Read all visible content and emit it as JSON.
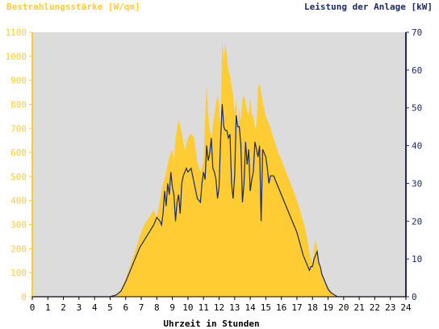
{
  "chart_data": {
    "type": "area",
    "title_left": "Bestrahlungsstärke [W/qm]",
    "title_right": "Leistung der Anlage [kW]",
    "xlabel": "Uhrzeit in Stunden",
    "x_ticks": [
      "0",
      "1",
      "2",
      "3",
      "4",
      "5",
      "6",
      "7",
      "8",
      "9",
      "10",
      "11",
      "12",
      "13",
      "14",
      "15",
      "16",
      "17",
      "18",
      "19",
      "20",
      "21",
      "22",
      "23",
      "24"
    ],
    "y_left_ticks": [
      "0",
      "100",
      "200",
      "300",
      "400",
      "500",
      "600",
      "700",
      "800",
      "900",
      "1000",
      "1100"
    ],
    "y_right_ticks": [
      "0",
      "10",
      "20",
      "30",
      "40",
      "50",
      "60",
      "70"
    ],
    "xlim": [
      0,
      24
    ],
    "ylim_left": [
      0,
      1100
    ],
    "ylim_right": [
      0,
      70
    ],
    "grid": false,
    "colors": {
      "background": "#dcdcdc",
      "area": "#ffcc33",
      "line": "#1a2a66",
      "left_axis": "#ffcc33",
      "right_axis": "#1a2a66",
      "text": "#000000"
    },
    "series": [
      {
        "name": "Bestrahlungsstärke [W/qm]",
        "axis": "left",
        "style": "area",
        "x": [
          0,
          5.0,
          5.3,
          5.6,
          5.9,
          6.2,
          6.5,
          6.8,
          7.0,
          7.2,
          7.4,
          7.6,
          7.8,
          8.0,
          8.2,
          8.4,
          8.6,
          8.8,
          8.9,
          9.0,
          9.1,
          9.2,
          9.3,
          9.4,
          9.6,
          9.8,
          10.0,
          10.2,
          10.4,
          10.6,
          10.8,
          11.0,
          11.1,
          11.2,
          11.35,
          11.5,
          11.7,
          11.9,
          12.0,
          12.1,
          12.2,
          12.3,
          12.4,
          12.5,
          12.6,
          12.7,
          12.8,
          12.9,
          13.0,
          13.1,
          13.2,
          13.3,
          13.4,
          13.5,
          13.6,
          13.7,
          13.8,
          13.9,
          14.0,
          14.1,
          14.2,
          14.3,
          14.4,
          14.5,
          14.6,
          14.7,
          14.8,
          14.9,
          15.0,
          15.2,
          15.4,
          15.6,
          15.8,
          16.0,
          16.3,
          16.6,
          16.9,
          17.2,
          17.5,
          17.7,
          17.85,
          18.0,
          18.1,
          18.2,
          18.3,
          18.4,
          18.5,
          18.7,
          18.9,
          19.1,
          19.3,
          19.5,
          19.7,
          19.9,
          20.1,
          20.3,
          24
        ],
        "values": [
          0,
          0,
          5,
          20,
          60,
          110,
          170,
          230,
          270,
          300,
          320,
          340,
          360,
          330,
          400,
          470,
          520,
          580,
          600,
          610,
          570,
          660,
          700,
          740,
          680,
          610,
          660,
          680,
          660,
          560,
          520,
          560,
          740,
          880,
          720,
          660,
          760,
          840,
          800,
          690,
          1080,
          980,
          1060,
          1000,
          940,
          920,
          880,
          840,
          760,
          820,
          700,
          780,
          730,
          820,
          840,
          810,
          770,
          760,
          830,
          760,
          750,
          700,
          710,
          870,
          890,
          850,
          810,
          780,
          750,
          720,
          680,
          640,
          600,
          570,
          520,
          470,
          420,
          360,
          290,
          230,
          170,
          140,
          210,
          240,
          200,
          160,
          120,
          80,
          50,
          30,
          15,
          6,
          2,
          0,
          0,
          0,
          0
        ]
      },
      {
        "name": "Leistung der Anlage [kW]",
        "axis": "right",
        "style": "line",
        "x": [
          0,
          5.0,
          5.4,
          5.7,
          6.0,
          6.3,
          6.6,
          6.9,
          7.2,
          7.5,
          7.8,
          8.0,
          8.2,
          8.3,
          8.4,
          8.5,
          8.6,
          8.7,
          8.8,
          8.9,
          9.0,
          9.1,
          9.2,
          9.3,
          9.4,
          9.5,
          9.6,
          9.7,
          9.8,
          9.9,
          10.0,
          10.2,
          10.4,
          10.6,
          10.8,
          10.9,
          11.0,
          11.1,
          11.2,
          11.3,
          11.4,
          11.5,
          11.6,
          11.7,
          11.8,
          11.9,
          12.0,
          12.1,
          12.2,
          12.3,
          12.4,
          12.5,
          12.6,
          12.7,
          12.8,
          12.9,
          13.0,
          13.1,
          13.2,
          13.3,
          13.4,
          13.5,
          13.6,
          13.7,
          13.8,
          13.9,
          14.0,
          14.1,
          14.2,
          14.3,
          14.4,
          14.5,
          14.6,
          14.7,
          14.8,
          14.9,
          15.0,
          15.1,
          15.2,
          15.3,
          15.4,
          15.5,
          15.6,
          15.8,
          16.0,
          16.2,
          16.4,
          16.6,
          16.8,
          17.0,
          17.2,
          17.4,
          17.6,
          17.8,
          17.9,
          18.0,
          18.1,
          18.2,
          18.3,
          18.4,
          18.5,
          18.6,
          18.8,
          19.0,
          19.2,
          19.4,
          19.6,
          19.8,
          20.0,
          20.2,
          24
        ],
        "values": [
          0,
          0,
          0.5,
          1.5,
          4,
          7,
          10,
          13,
          15,
          17,
          19,
          21,
          20,
          19,
          22,
          28,
          24,
          30,
          27,
          33,
          29,
          27,
          20,
          25,
          27,
          22,
          30,
          32,
          33,
          34,
          33,
          34,
          30,
          26,
          25,
          30,
          33,
          31,
          40,
          36,
          38,
          42,
          34,
          33,
          31,
          26,
          29,
          42,
          51,
          45,
          44,
          44,
          42,
          43,
          30,
          26,
          32,
          48,
          45,
          45,
          40,
          25,
          30,
          41,
          35,
          39,
          28,
          31,
          33,
          41,
          39,
          37,
          40,
          20,
          39,
          38,
          37,
          34,
          30,
          32,
          32,
          32,
          31,
          29,
          27,
          25,
          23,
          21,
          19,
          17,
          14,
          11,
          9,
          7,
          8,
          8,
          10,
          11,
          12,
          9,
          8,
          6,
          4,
          2,
          1,
          0.5,
          0,
          0,
          0,
          0,
          0
        ]
      }
    ]
  }
}
